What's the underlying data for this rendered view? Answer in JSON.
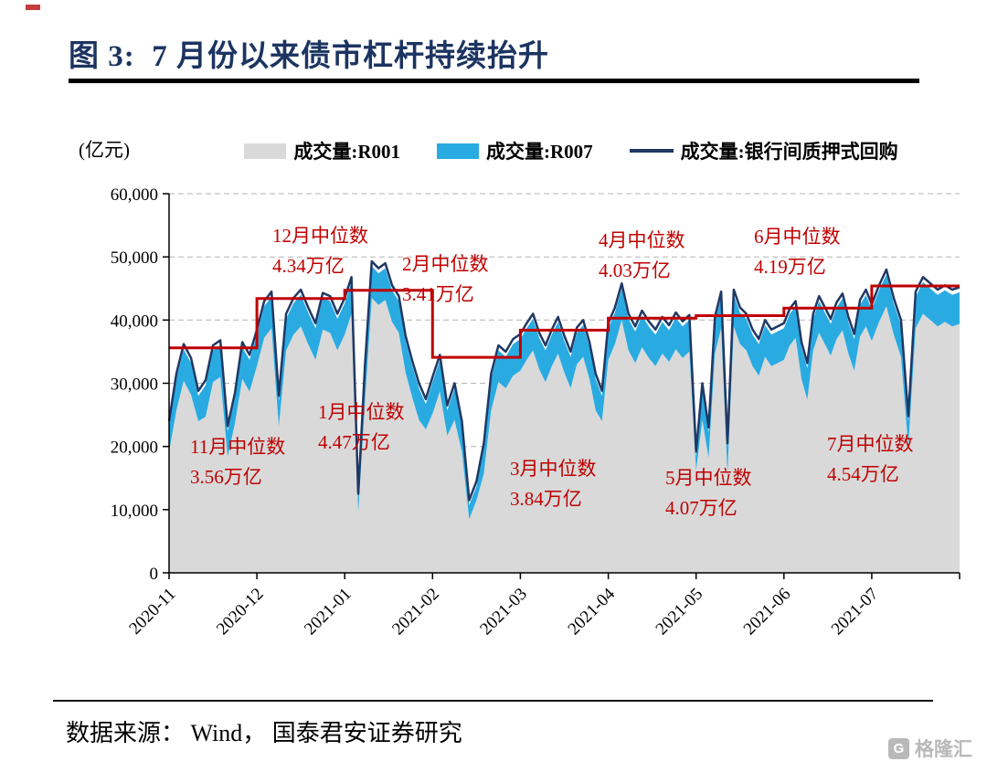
{
  "header": {
    "title": "图 3:  7 月份以来债市杠杆持续抬升"
  },
  "footer": {
    "source": "数据来源： Wind， 国泰君安证券研究",
    "watermark": "格隆汇"
  },
  "chart_data": {
    "type": "area",
    "title": "7 月份以来债市杠杆持续抬升",
    "ylabel": "(亿元)",
    "ylim": [
      0,
      60000
    ],
    "ytick_labels": [
      "0",
      "10,000",
      "20,000",
      "30,000",
      "40,000",
      "50,000",
      "60,000"
    ],
    "x_tick_labels": [
      "2020-11",
      "2020-12",
      "2021-01",
      "2021-02",
      "2021-03",
      "2021-04",
      "2021-05",
      "2021-06",
      "2021-07"
    ],
    "month_start_indices": [
      0,
      12,
      24,
      37,
      49,
      63,
      76,
      90,
      105
    ],
    "grid": "dashed-horizontal",
    "legend_position": "top",
    "series": [
      {
        "name": "成交量:R001",
        "type": "area",
        "color": "#d9d9d9",
        "values": [
          19200,
          25700,
          30400,
          28200,
          24000,
          24700,
          30200,
          31000,
          18400,
          23700,
          30700,
          28700,
          32700,
          37200,
          38700,
          23200,
          35200,
          37700,
          39000,
          36200,
          33700,
          38500,
          38000,
          35200,
          37700,
          41000,
          9500,
          27200,
          43500,
          42400,
          43200,
          39700,
          38000,
          31700,
          27700,
          24200,
          22700,
          25200,
          28700,
          21700,
          24200,
          19200,
          8500,
          11500,
          15700,
          25700,
          30200,
          29200,
          31200,
          32000,
          33700,
          35200,
          32200,
          30200,
          32700,
          34700,
          31700,
          29200,
          33000,
          34200,
          30700,
          25700,
          24000,
          33700,
          36200,
          40000,
          35200,
          33200,
          35700,
          34000,
          32700,
          34700,
          33400,
          35400,
          34000,
          35000,
          16200,
          24200,
          18200,
          34700,
          38700,
          15700,
          39000,
          36200,
          35200,
          32700,
          31200,
          34200,
          32700,
          33200,
          33700,
          36000,
          37200,
          30700,
          27400,
          35200,
          38000,
          36200,
          34400,
          37000,
          38400,
          34700,
          32000,
          37400,
          39000,
          36700,
          39700,
          42200,
          37700,
          34200,
          20000,
          38700,
          41000,
          40000,
          39000,
          39700,
          39000,
          39400
        ]
      },
      {
        "name": "成交量:R007",
        "type": "area-stacked",
        "color": "#29abe2",
        "values": [
          4000,
          5000,
          5000,
          5000,
          4000,
          5000,
          5000,
          5000,
          4000,
          4000,
          5000,
          5000,
          5000,
          5000,
          5000,
          4000,
          5000,
          5000,
          5000,
          5000,
          5000,
          5000,
          5000,
          5000,
          5000,
          5000,
          2200,
          5000,
          5000,
          5000,
          5000,
          5000,
          5000,
          5000,
          5000,
          5000,
          4000,
          5000,
          5000,
          4000,
          5000,
          4000,
          2200,
          2200,
          4000,
          5000,
          5000,
          5000,
          5000,
          5000,
          5000,
          5000,
          5000,
          5000,
          5000,
          5000,
          5000,
          5000,
          5000,
          5000,
          5000,
          5000,
          4000,
          5000,
          5000,
          5000,
          5000,
          5000,
          5000,
          5000,
          5000,
          5000,
          5000,
          5000,
          5000,
          5000,
          2200,
          5000,
          4000,
          5000,
          5000,
          4000,
          5000,
          5000,
          5000,
          5000,
          5000,
          5000,
          5000,
          5000,
          5000,
          5000,
          5000,
          5000,
          5000,
          5000,
          5000,
          5000,
          5000,
          5000,
          5000,
          5000,
          5000,
          5000,
          5000,
          5000,
          5000,
          5000,
          5000,
          5000,
          4000,
          5000,
          5000,
          5000,
          5000,
          5000,
          5000,
          5000
        ]
      },
      {
        "name": "成交量:银行间质押式回购",
        "type": "line",
        "color": "#1f3864",
        "values": [
          24000,
          31500,
          36200,
          34000,
          28800,
          30500,
          36000,
          36800,
          23200,
          28500,
          36500,
          34500,
          38500,
          43000,
          44500,
          28000,
          41000,
          43500,
          44800,
          42000,
          39500,
          44300,
          43800,
          41000,
          43500,
          46800,
          12500,
          33000,
          49300,
          48200,
          49000,
          45500,
          43800,
          37500,
          33500,
          30000,
          27500,
          31000,
          34500,
          26500,
          30000,
          24000,
          11500,
          14500,
          20500,
          31500,
          36000,
          35000,
          37000,
          37800,
          39500,
          41000,
          38000,
          36000,
          38500,
          40500,
          37500,
          35000,
          38800,
          40000,
          36500,
          31500,
          28800,
          39500,
          42000,
          45800,
          41000,
          39000,
          41500,
          39800,
          38500,
          40500,
          39200,
          41200,
          39800,
          40800,
          19200,
          30000,
          23000,
          40500,
          44500,
          20500,
          44800,
          42000,
          41000,
          38500,
          37000,
          40000,
          38500,
          39000,
          39500,
          41800,
          43000,
          36500,
          33200,
          41000,
          43800,
          42000,
          40200,
          42800,
          44200,
          40500,
          37800,
          43200,
          44800,
          42500,
          45500,
          48000,
          43500,
          40000,
          24800,
          44500,
          46800,
          45800,
          44800,
          45500,
          44800,
          45200
        ]
      }
    ],
    "median_line": {
      "name": "月度中位数",
      "color": "#c00000"
    },
    "annotations": [
      {
        "month": "2020-11",
        "line1": "11月中位数",
        "line2": "3.56万亿",
        "value": 35600,
        "x": 208,
        "y": 366
      },
      {
        "month": "2020-12",
        "line1": "12月中位数",
        "line2": "4.34万亿",
        "value": 43400,
        "x": 298,
        "y": 135
      },
      {
        "month": "2021-01",
        "line1": "1月中位数",
        "line2": "4.47万亿",
        "value": 44700,
        "x": 348,
        "y": 328
      },
      {
        "month": "2021-02",
        "line1": "2月中位数",
        "line2": "3.41万亿",
        "value": 34100,
        "x": 440,
        "y": 166
      },
      {
        "month": "2021-03",
        "line1": "3月中位数",
        "line2": "3.84万亿",
        "value": 38400,
        "x": 558,
        "y": 390
      },
      {
        "month": "2021-04",
        "line1": "4月中位数",
        "line2": "4.03万亿",
        "value": 40300,
        "x": 655,
        "y": 140
      },
      {
        "month": "2021-05",
        "line1": "5月中位数",
        "line2": "4.07万亿",
        "value": 40700,
        "x": 728,
        "y": 400
      },
      {
        "month": "2021-06",
        "line1": "6月中位数",
        "line2": "4.19万亿",
        "value": 41900,
        "x": 825,
        "y": 136
      },
      {
        "month": "2021-07",
        "line1": "7月中位数",
        "line2": "4.54万亿",
        "value": 45400,
        "x": 905,
        "y": 363
      }
    ]
  }
}
